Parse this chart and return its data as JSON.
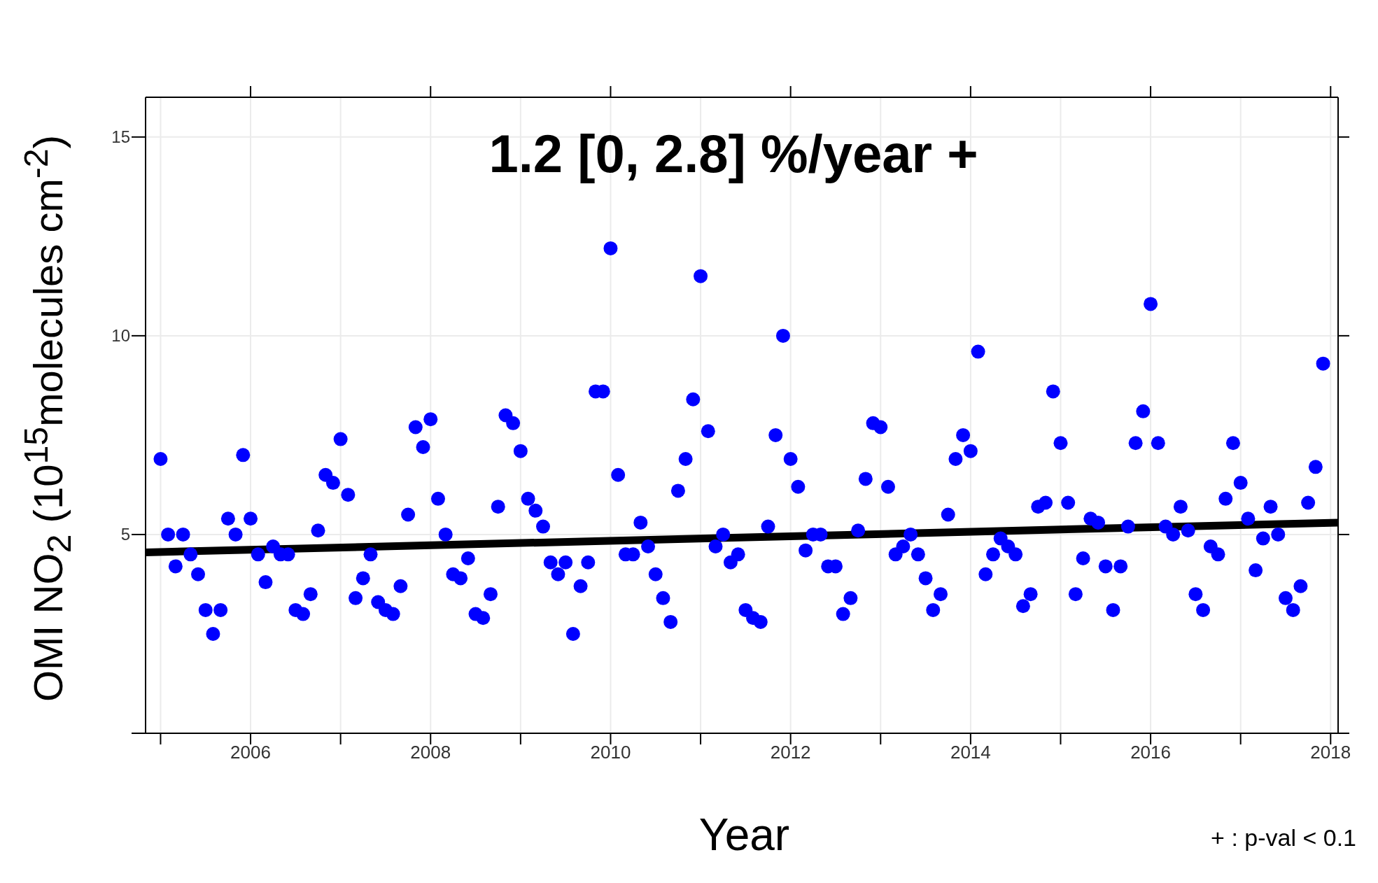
{
  "chart_data": {
    "type": "scatter",
    "xlabel": "Year",
    "ylabel": "OMI NO$_{2}$ (10$^{15}$molecules cm$^{-2}$)",
    "annotations": [
      "1.2 [0, 2.8] %/year +",
      "+  :  p-val < 0.1"
    ],
    "xlim": [
      "2004-11",
      "2018-02"
    ],
    "xticks": [
      {
        "value": "2005",
        "label": null
      },
      "2006",
      {
        "value": "2007",
        "label": null
      },
      "2008",
      {
        "value": "2009",
        "label": null
      },
      "2010",
      {
        "value": "2011",
        "label": null
      },
      "2012",
      {
        "value": "2013",
        "label": null
      },
      "2014",
      {
        "value": "2015",
        "label": null
      },
      "2016",
      {
        "value": "2017",
        "label": null
      },
      "2018"
    ],
    "ylim": [
      0,
      16
    ],
    "yticks": [
      {
        "value": 0,
        "label": null
      },
      5,
      10,
      15
    ],
    "grid": true,
    "series": [
      {
        "color": "#0000ff",
        "marker": "circle",
        "x": [
          "2005-01",
          "2005-02",
          "2005-03",
          "2005-04",
          "2005-05",
          "2005-06",
          "2005-07",
          "2005-08",
          "2005-09",
          "2005-10",
          "2005-11",
          "2005-12",
          "2006-01",
          "2006-02",
          "2006-03",
          "2006-04",
          "2006-05",
          "2006-06",
          "2006-07",
          "2006-08",
          "2006-09",
          "2006-10",
          "2006-11",
          "2006-12",
          "2007-01",
          "2007-02",
          "2007-03",
          "2007-04",
          "2007-05",
          "2007-06",
          "2007-07",
          "2007-08",
          "2007-09",
          "2007-10",
          "2007-11",
          "2007-12",
          "2008-01",
          "2008-02",
          "2008-03",
          "2008-04",
          "2008-05",
          "2008-06",
          "2008-07",
          "2008-08",
          "2008-09",
          "2008-10",
          "2008-11",
          "2008-12",
          "2009-01",
          "2009-02",
          "2009-03",
          "2009-04",
          "2009-05",
          "2009-06",
          "2009-07",
          "2009-08",
          "2009-09",
          "2009-10",
          "2009-11",
          "2009-12",
          "2010-01",
          "2010-02",
          "2010-03",
          "2010-04",
          "2010-05",
          "2010-06",
          "2010-07",
          "2010-08",
          "2010-09",
          "2010-10",
          "2010-11",
          "2010-12",
          "2011-01",
          "2011-02",
          "2011-03",
          "2011-04",
          "2011-05",
          "2011-06",
          "2011-07",
          "2011-08",
          "2011-09",
          "2011-10",
          "2011-11",
          "2011-12",
          "2012-01",
          "2012-02",
          "2012-03",
          "2012-04",
          "2012-05",
          "2012-06",
          "2012-07",
          "2012-08",
          "2012-09",
          "2012-10",
          "2012-11",
          "2012-12",
          "2013-01",
          "2013-02",
          "2013-03",
          "2013-04",
          "2013-05",
          "2013-06",
          "2013-07",
          "2013-08",
          "2013-09",
          "2013-10",
          "2013-11",
          "2013-12",
          "2014-01",
          "2014-02",
          "2014-03",
          "2014-04",
          "2014-05",
          "2014-06",
          "2014-07",
          "2014-08",
          "2014-09",
          "2014-10",
          "2014-11",
          "2014-12",
          "2015-01",
          "2015-02",
          "2015-03",
          "2015-04",
          "2015-05",
          "2015-06",
          "2015-07",
          "2015-08",
          "2015-09",
          "2015-10",
          "2015-11",
          "2015-12",
          "2016-01",
          "2016-02",
          "2016-03",
          "2016-04",
          "2016-05",
          "2016-06",
          "2016-07",
          "2016-08",
          "2016-09",
          "2016-10",
          "2016-11",
          "2016-12",
          "2017-01",
          "2017-02",
          "2017-03",
          "2017-04",
          "2017-05",
          "2017-06",
          "2017-07",
          "2017-08",
          "2017-09",
          "2017-10",
          "2017-11",
          "2017-12"
        ],
        "values": [
          6.9,
          5.0,
          4.2,
          5.0,
          4.5,
          4.0,
          3.1,
          2.5,
          3.1,
          5.4,
          5.0,
          7.0,
          5.4,
          4.5,
          3.8,
          4.7,
          4.5,
          4.5,
          3.1,
          3.0,
          3.5,
          5.1,
          6.5,
          6.3,
          7.4,
          6.0,
          3.4,
          3.9,
          4.5,
          3.3,
          3.1,
          3.0,
          3.7,
          5.5,
          7.7,
          7.2,
          7.9,
          5.9,
          5.0,
          4.0,
          3.9,
          4.4,
          3.0,
          2.9,
          3.5,
          5.7,
          8.0,
          7.8,
          7.1,
          5.9,
          5.6,
          5.2,
          4.3,
          4.0,
          4.3,
          2.5,
          3.7,
          4.3,
          8.6,
          8.6,
          12.2,
          6.5,
          4.5,
          4.5,
          5.3,
          4.7,
          4.0,
          3.4,
          2.8,
          6.1,
          6.9,
          8.4,
          11.5,
          7.6,
          4.7,
          5.0,
          4.3,
          4.5,
          3.1,
          2.9,
          2.8,
          5.2,
          7.5,
          10.0,
          6.9,
          6.2,
          4.6,
          5.0,
          5.0,
          4.2,
          4.2,
          3.0,
          3.4,
          5.1,
          6.4,
          7.8,
          7.7,
          6.2,
          4.5,
          4.7,
          5.0,
          4.5,
          3.9,
          3.1,
          3.5,
          5.5,
          6.9,
          7.5,
          7.1,
          9.6,
          4.0,
          4.5,
          4.9,
          4.7,
          4.5,
          3.2,
          3.5,
          5.7,
          5.8,
          8.6,
          7.3,
          5.8,
          3.5,
          4.4,
          5.4,
          5.3,
          4.2,
          3.1,
          4.2,
          5.2,
          7.3,
          8.1,
          10.8,
          7.3,
          5.2,
          5.0,
          5.7,
          5.1,
          3.5,
          3.1,
          4.7,
          4.5,
          5.9,
          7.3,
          6.3,
          5.4,
          4.1,
          4.9,
          5.7,
          5.0,
          3.4,
          3.1,
          3.7,
          5.8,
          6.7,
          9.3
        ]
      },
      {
        "type": "line",
        "color": "#000000",
        "line_style": "solid",
        "x": [
          "2004-11",
          "2018-02"
        ],
        "values": [
          4.55,
          5.3
        ]
      }
    ]
  }
}
